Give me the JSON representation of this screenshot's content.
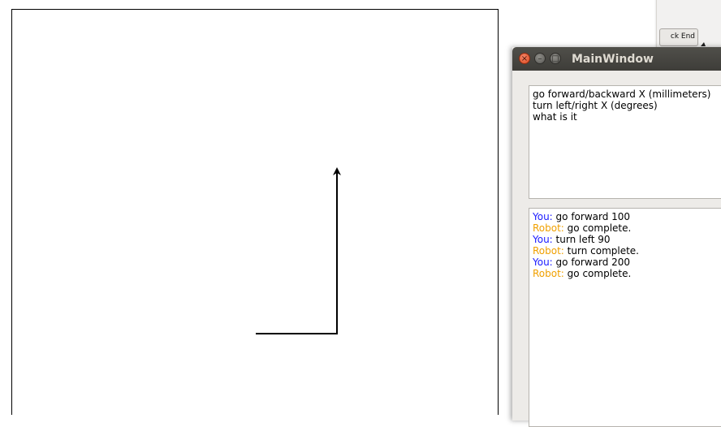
{
  "background_window": {
    "button_label": "ck End"
  },
  "main_window": {
    "title": "MainWindow",
    "help_lines": [
      "go forward/backward X (millimeters)",
      "turn left/right X (degrees)",
      "what is it"
    ],
    "chat": [
      {
        "speaker": "You:",
        "text": "go forward 100"
      },
      {
        "speaker": "Robot:",
        "text": "go complete."
      },
      {
        "speaker": "You:",
        "text": "turn left 90"
      },
      {
        "speaker": "Robot:",
        "text": "turn complete."
      },
      {
        "speaker": "You:",
        "text": "go forward 200"
      },
      {
        "speaker": "Robot:",
        "text": "go complete."
      }
    ],
    "colors": {
      "user_label": "#1a1aff",
      "robot_label": "#f0a000"
    }
  },
  "robot_path": {
    "moves": [
      {
        "action": "go forward",
        "amount": 100,
        "unit": "millimeters"
      },
      {
        "action": "turn left",
        "amount": 90,
        "unit": "degrees"
      },
      {
        "action": "go forward",
        "amount": 200,
        "unit": "millimeters"
      }
    ]
  }
}
